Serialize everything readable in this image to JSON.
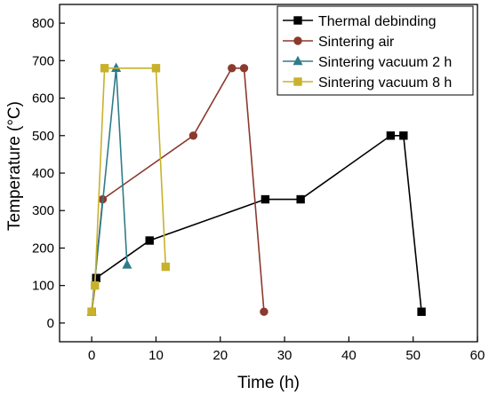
{
  "chart_data": {
    "type": "line",
    "title": "",
    "xlabel": "Time (h)",
    "ylabel": "Temperature (°C)",
    "xlim": [
      -5,
      60
    ],
    "ylim": [
      -50,
      850
    ],
    "xticks": [
      0,
      10,
      20,
      30,
      40,
      50,
      60
    ],
    "yticks": [
      0,
      100,
      200,
      300,
      400,
      500,
      600,
      700,
      800
    ],
    "grid": false,
    "legend_position": "top-right",
    "series": [
      {
        "name": "Thermal debinding",
        "color": "#000000",
        "marker": "square",
        "x": [
          0,
          0.7,
          9,
          27,
          32.5,
          46.5,
          48.5,
          51.3
        ],
        "y": [
          30,
          120,
          220,
          330,
          330,
          500,
          500,
          30
        ]
      },
      {
        "name": "Sintering air",
        "color": "#8b3a2e",
        "marker": "circle",
        "x": [
          0,
          1.7,
          15.8,
          21.8,
          23.7,
          26.8
        ],
        "y": [
          30,
          330,
          500,
          680,
          680,
          30
        ]
      },
      {
        "name": "Sintering vacuum 2 h",
        "color": "#2e7d88",
        "marker": "triangle",
        "x": [
          0,
          3.8,
          5.5
        ],
        "y": [
          30,
          680,
          155
        ]
      },
      {
        "name": "Sintering vacuum 8 h",
        "color": "#c8b22b",
        "marker": "square",
        "x": [
          0,
          0.5,
          2,
          10,
          11.5
        ],
        "y": [
          30,
          100,
          680,
          680,
          150
        ]
      }
    ]
  }
}
